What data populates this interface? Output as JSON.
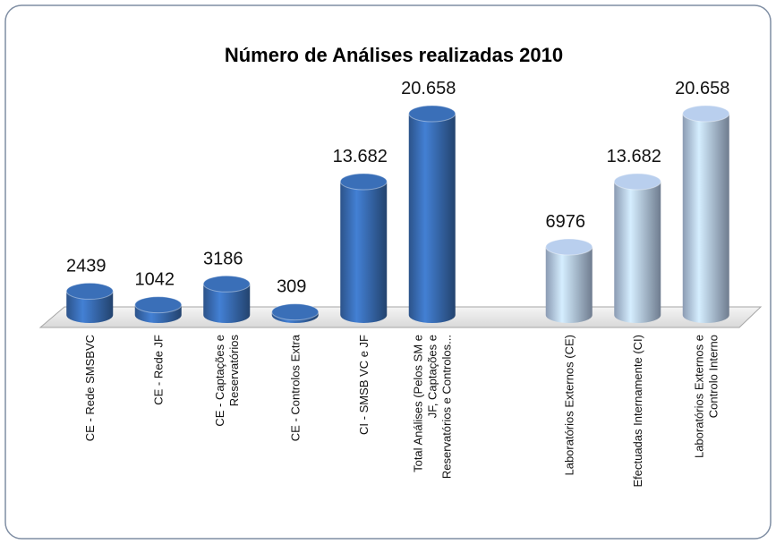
{
  "chart_data": {
    "type": "bar3d",
    "title": "Número de Análises realizadas 2010",
    "categories": [
      "CE - Rede SMSBVC",
      "CE - Rede JF",
      "CE - Captações e\nReservatórios",
      "CE - Controlos Extra",
      "CI - SMSB VC e JF",
      "Total Análises (Pelos SM e\nJF, Captações e\nReservatórios e Controlos...",
      null,
      "Laboratórios Externos (CE)",
      "Efectuadas Internamente (CI)",
      "Laboratórios Externos e\nControlo Interno"
    ],
    "values": [
      2439,
      1042,
      3186,
      309,
      13682,
      20658,
      null,
      6976,
      13682,
      20658
    ],
    "value_labels": [
      "2439",
      "1042",
      "3186",
      "309",
      "13.682",
      "20.658",
      null,
      "6976",
      "13.682",
      "20.658"
    ],
    "colors": [
      "#3a6fb8",
      "#3a6fb8",
      "#3a6fb8",
      "#3a6fb8",
      "#3a6fb8",
      "#3a6fb8",
      null,
      "#b9cfee",
      "#b9cfee",
      "#b9cfee"
    ]
  }
}
